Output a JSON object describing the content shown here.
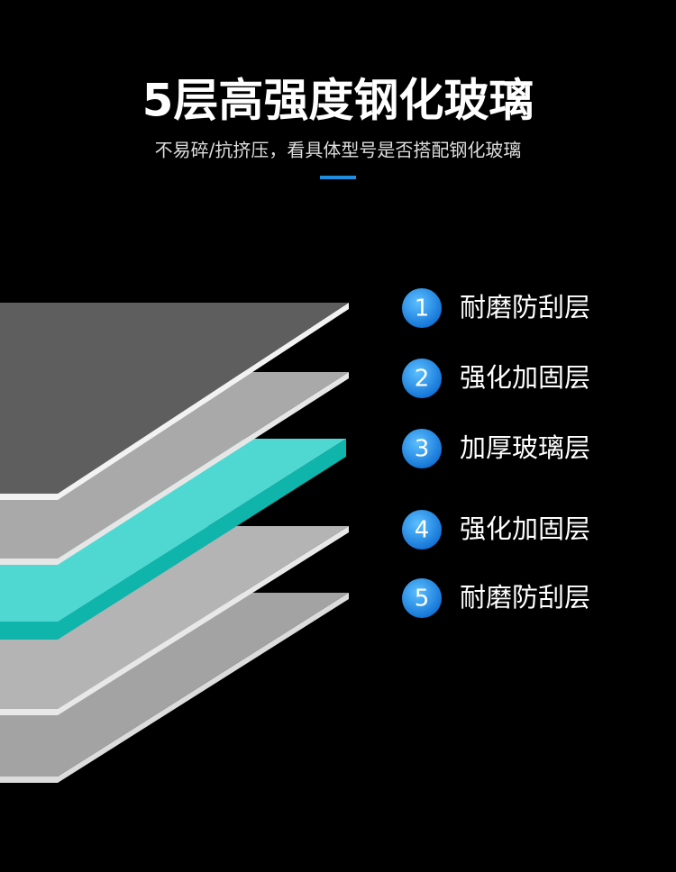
{
  "header": {
    "title": "5层高强度钢化玻璃",
    "subtitle": "不易碎/抗挤压，看具体型号是否搭配钢化玻璃"
  },
  "layers": [
    {
      "number": "1",
      "label": "耐磨防刮层"
    },
    {
      "number": "2",
      "label": "强化加固层"
    },
    {
      "number": "3",
      "label": "加厚玻璃层"
    },
    {
      "number": "4",
      "label": "强化加固层"
    },
    {
      "number": "5",
      "label": "耐磨防刮层"
    }
  ]
}
